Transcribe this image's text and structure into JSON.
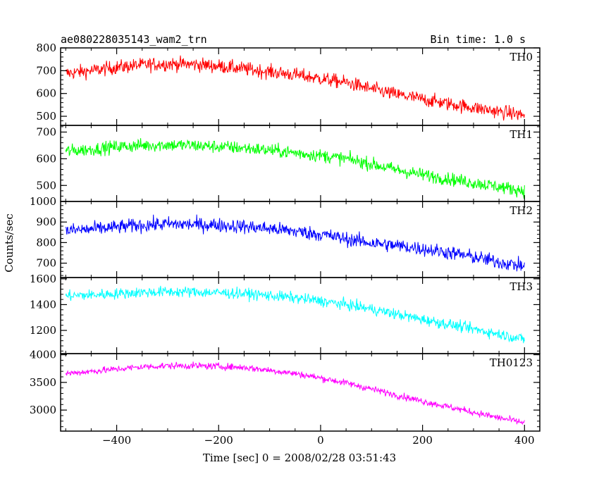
{
  "chart_data": {
    "type": "line",
    "title": "ae080228035143_wam2_trn",
    "subtitle": "Bin time: 1.0 s",
    "xlabel": "Time [sec] 0 = 2008/02/28 03:51:43",
    "ylabel": "Counts/sec",
    "xlim": [
      -510,
      430
    ],
    "x_ticks": [
      -400,
      -200,
      0,
      200,
      400
    ],
    "x_range": [
      -500,
      400
    ],
    "x_step": 1,
    "panels": [
      {
        "name": "TH0",
        "color": "#ff0000",
        "ylim": [
          460,
          800
        ],
        "y_ticks": [
          500,
          600,
          700,
          800
        ],
        "x": [
          -500,
          -450,
          -400,
          -350,
          -300,
          -250,
          -200,
          -150,
          -100,
          -50,
          0,
          50,
          100,
          150,
          200,
          250,
          300,
          350,
          400
        ],
        "trend": [
          688,
          700,
          715,
          725,
          730,
          728,
          720,
          708,
          695,
          682,
          665,
          648,
          620,
          595,
          575,
          555,
          538,
          520,
          505
        ],
        "noise": 40
      },
      {
        "name": "TH1",
        "color": "#00ff00",
        "ylim": [
          440,
          725
        ],
        "y_ticks": [
          500,
          600,
          700
        ],
        "x": [
          -500,
          -450,
          -400,
          -350,
          -300,
          -250,
          -200,
          -150,
          -100,
          -50,
          0,
          50,
          100,
          150,
          200,
          250,
          300,
          350,
          400
        ],
        "trend": [
          628,
          635,
          645,
          650,
          652,
          650,
          645,
          640,
          632,
          622,
          612,
          600,
          580,
          558,
          540,
          525,
          510,
          495,
          480
        ],
        "noise": 32
      },
      {
        "name": "TH2",
        "color": "#0000ff",
        "ylim": [
          630,
          1000
        ],
        "y_ticks": [
          700,
          800,
          900,
          1000
        ],
        "x": [
          -500,
          -450,
          -400,
          -350,
          -300,
          -250,
          -200,
          -150,
          -100,
          -50,
          0,
          50,
          100,
          150,
          200,
          250,
          300,
          350,
          400
        ],
        "trend": [
          858,
          865,
          875,
          885,
          890,
          888,
          885,
          878,
          868,
          855,
          840,
          818,
          798,
          785,
          770,
          752,
          730,
          705,
          685
        ],
        "noise": 45
      },
      {
        "name": "TH3",
        "color": "#00ffff",
        "ylim": [
          1020,
          1610
        ],
        "y_ticks": [
          1200,
          1400,
          1600
        ],
        "x": [
          -500,
          -450,
          -400,
          -350,
          -300,
          -250,
          -200,
          -150,
          -100,
          -50,
          0,
          50,
          100,
          150,
          200,
          250,
          300,
          350,
          400
        ],
        "trend": [
          1468,
          1475,
          1485,
          1495,
          1500,
          1498,
          1492,
          1485,
          1470,
          1452,
          1428,
          1400,
          1365,
          1325,
          1285,
          1248,
          1210,
          1172,
          1130
        ],
        "noise": 55
      },
      {
        "name": "TH0123",
        "color": "#ff00ff",
        "ylim": [
          2620,
          4020
        ],
        "y_ticks": [
          3000,
          3500,
          4000
        ],
        "x": [
          -500,
          -450,
          -400,
          -350,
          -300,
          -250,
          -200,
          -150,
          -100,
          -50,
          0,
          50,
          100,
          150,
          200,
          250,
          300,
          350,
          400
        ],
        "trend": [
          3660,
          3700,
          3740,
          3780,
          3800,
          3800,
          3790,
          3770,
          3720,
          3660,
          3580,
          3490,
          3380,
          3270,
          3160,
          3060,
          2960,
          2860,
          2770
        ],
        "noise": 80
      }
    ]
  }
}
